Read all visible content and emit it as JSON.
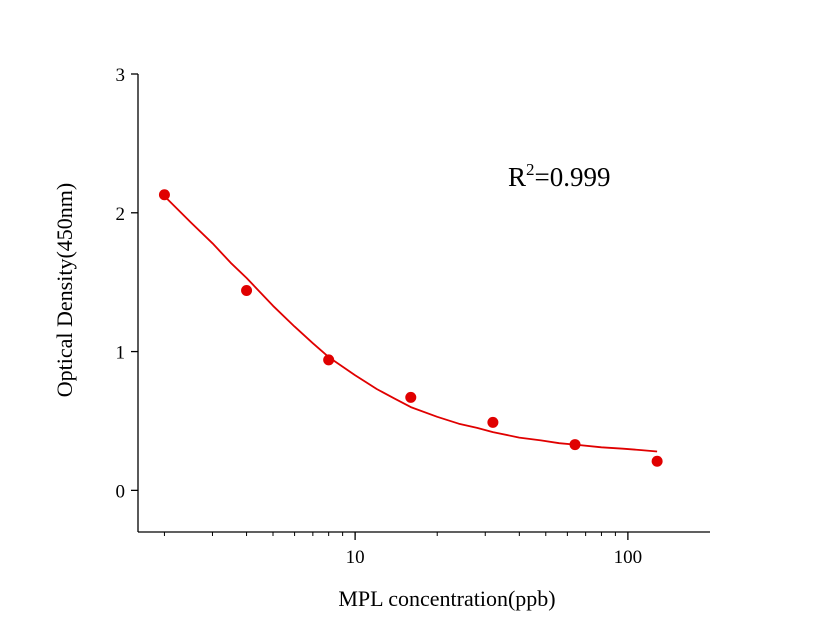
{
  "chart_data": {
    "type": "scatter",
    "xlabel": "MPL concentration(ppb)",
    "ylabel": "Optical Density(450nm)",
    "x_scale": "log",
    "xlim": [
      1.6,
      200
    ],
    "ylim": [
      -0.3,
      3
    ],
    "x_ticks": [
      10,
      100
    ],
    "x_tick_labels": [
      "10",
      "100"
    ],
    "y_ticks": [
      0,
      1,
      2,
      3
    ],
    "y_tick_labels": [
      "0",
      "1",
      "2",
      "3"
    ],
    "grid": false,
    "legend": "none",
    "annotation": {
      "base": "R",
      "superscript": "2",
      "value": "=0.999"
    },
    "series": [
      {
        "kind": "points",
        "color": "#e00000",
        "x": [
          2,
          4,
          8,
          16,
          32,
          64,
          128
        ],
        "y": [
          2.13,
          1.44,
          0.94,
          0.67,
          0.49,
          0.33,
          0.21
        ]
      },
      {
        "kind": "fit-curve",
        "color": "#e00000",
        "x": [
          2,
          2.5,
          3,
          3.5,
          4,
          5,
          6,
          7,
          8,
          10,
          12,
          14,
          16,
          20,
          24,
          28,
          32,
          40,
          48,
          56,
          64,
          80,
          96,
          112,
          128
        ],
        "y": [
          2.12,
          1.93,
          1.78,
          1.64,
          1.53,
          1.33,
          1.18,
          1.06,
          0.96,
          0.83,
          0.73,
          0.66,
          0.6,
          0.53,
          0.48,
          0.45,
          0.42,
          0.38,
          0.36,
          0.34,
          0.33,
          0.31,
          0.3,
          0.29,
          0.28
        ]
      }
    ]
  }
}
